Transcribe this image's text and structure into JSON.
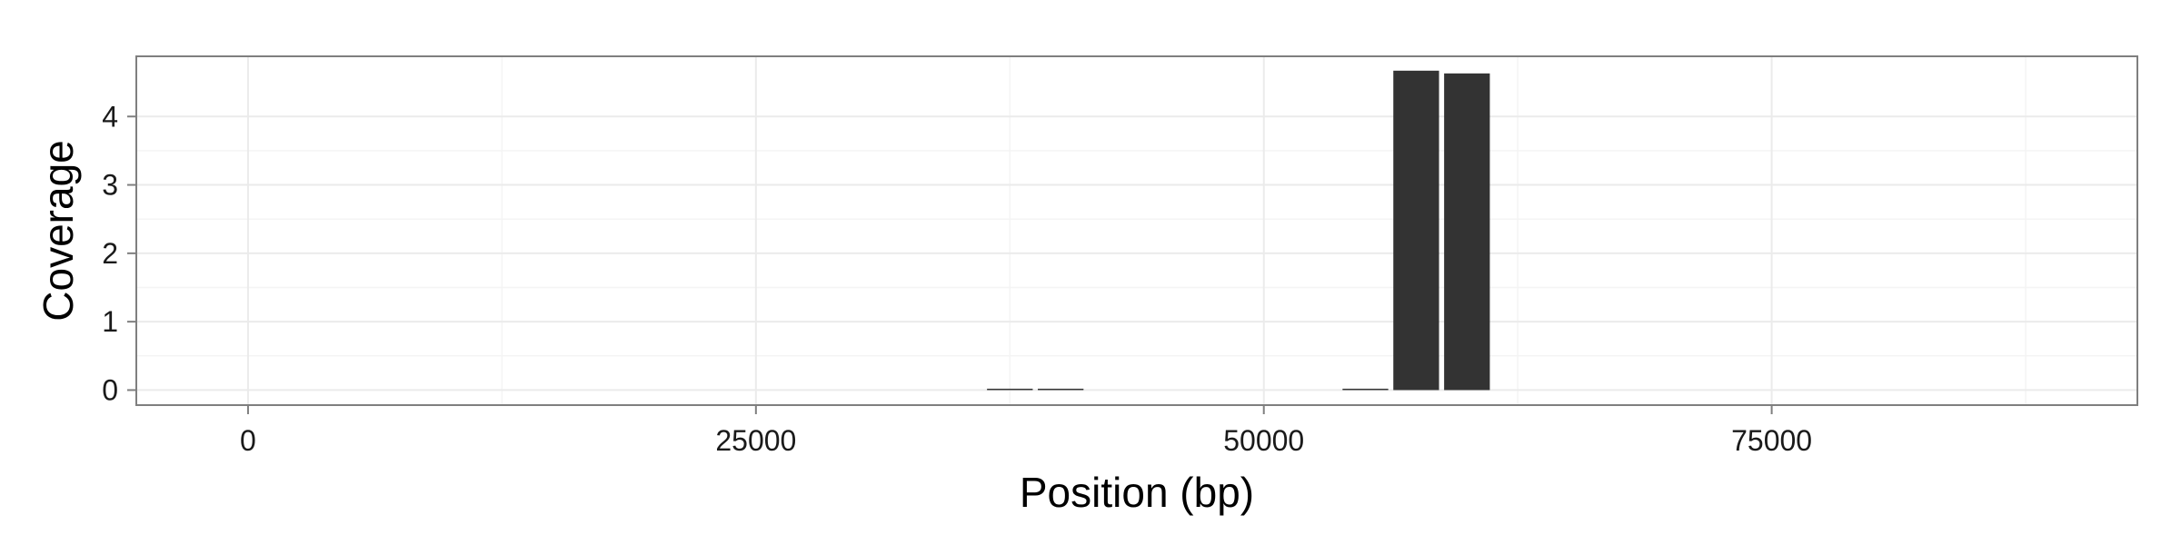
{
  "chart_data": {
    "type": "bar",
    "xlabel": "Position (bp)",
    "ylabel": "Coverage",
    "xlim": [
      -5500,
      93000
    ],
    "ylim": [
      -0.22,
      4.88
    ],
    "x_ticks": [
      0,
      25000,
      50000,
      75000
    ],
    "x_tick_labels": [
      "0",
      "25000",
      "50000",
      "75000"
    ],
    "y_ticks": [
      0,
      1,
      2,
      3,
      4
    ],
    "y_tick_labels": [
      "0",
      "1",
      "2",
      "3",
      "4"
    ],
    "bar_width_bp": 2250,
    "bars": [
      {
        "x": 37500,
        "value": 0.02
      },
      {
        "x": 40000,
        "value": 0.02
      },
      {
        "x": 55000,
        "value": 0.02
      },
      {
        "x": 57500,
        "value": 4.67
      },
      {
        "x": 60000,
        "value": 4.63
      }
    ],
    "grid": true,
    "legend": "none",
    "bar_color": "#333333",
    "panel_border_color": "#7f7f7f",
    "grid_color": "#ebebeb"
  }
}
